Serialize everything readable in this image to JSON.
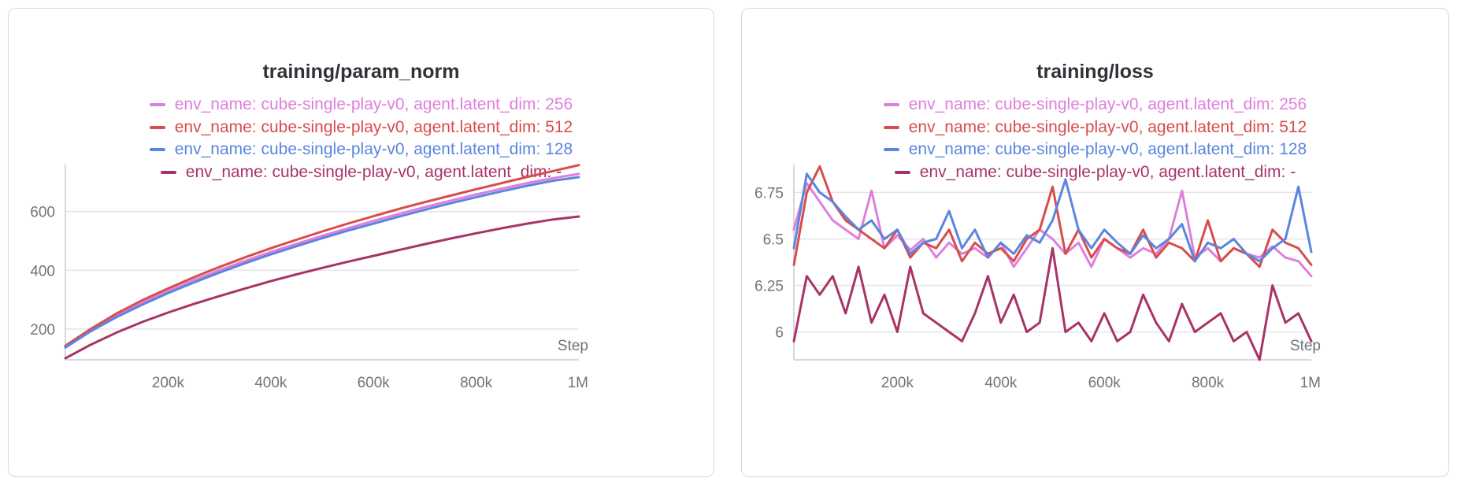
{
  "colors": {
    "axis": "#c9ccd1",
    "grid": "#e3e5e8",
    "tick_text": "#70747b",
    "title_text": "#2f3237"
  },
  "chart_data": [
    {
      "type": "line",
      "title": "training/param_norm",
      "xlabel": "Step",
      "ylabel": "",
      "xlim": [
        0,
        1000000
      ],
      "ylim": [
        95,
        760
      ],
      "x_ticks": [
        200000,
        400000,
        600000,
        800000,
        1000000
      ],
      "x_tick_labels": [
        "200k",
        "400k",
        "600k",
        "800k",
        "1M"
      ],
      "y_ticks": [
        200,
        400,
        600
      ],
      "y_tick_labels": [
        "200",
        "400",
        "600"
      ],
      "grid": "horizontal",
      "legend_position": "top-center",
      "x": [
        0,
        50000,
        100000,
        150000,
        200000,
        250000,
        300000,
        350000,
        400000,
        450000,
        500000,
        550000,
        600000,
        650000,
        700000,
        750000,
        800000,
        850000,
        900000,
        950000,
        1000000
      ],
      "series": [
        {
          "name": "env_name: cube-single-play-v0, agent.latent_dim: 256",
          "color": "#de7fdc",
          "values": [
            140,
            197,
            246,
            289,
            329,
            366,
            400,
            432,
            462,
            490,
            517,
            543,
            568,
            592,
            615,
            637,
            658,
            678,
            697,
            714,
            728
          ]
        },
        {
          "name": "env_name: cube-single-play-v0, agent.latent_dim: 512",
          "color": "#d94c4c",
          "values": [
            143,
            201,
            253,
            298,
            338,
            376,
            411,
            444,
            475,
            504,
            532,
            559,
            584,
            609,
            632,
            654,
            676,
            697,
            718,
            738,
            758
          ]
        },
        {
          "name": "env_name: cube-single-play-v0, agent.latent_dim: 128",
          "color": "#5b85de",
          "values": [
            137,
            193,
            241,
            283,
            322,
            358,
            392,
            424,
            454,
            482,
            509,
            535,
            559,
            583,
            606,
            628,
            649,
            669,
            688,
            705,
            717
          ]
        },
        {
          "name": "env_name: cube-single-play-v0, agent.latent_dim: -",
          "color": "#a83368",
          "values": [
            100,
            147,
            188,
            224,
            256,
            285,
            312,
            338,
            363,
            386,
            408,
            429,
            449,
            469,
            489,
            508,
            526,
            543,
            559,
            573,
            583
          ]
        }
      ]
    },
    {
      "type": "line",
      "title": "training/loss",
      "xlabel": "Step",
      "ylabel": "",
      "xlim": [
        0,
        1000000
      ],
      "ylim": [
        5.85,
        6.9
      ],
      "x_ticks": [
        200000,
        400000,
        600000,
        800000,
        1000000
      ],
      "x_tick_labels": [
        "200k",
        "400k",
        "600k",
        "800k",
        "1M"
      ],
      "y_ticks": [
        6,
        6.25,
        6.5,
        6.75
      ],
      "y_tick_labels": [
        "6",
        "6.25",
        "6.5",
        "6.75"
      ],
      "grid": "horizontal",
      "legend_position": "top-center",
      "x": [
        0,
        25000,
        50000,
        75000,
        100000,
        125000,
        150000,
        175000,
        200000,
        225000,
        250000,
        275000,
        300000,
        325000,
        350000,
        375000,
        400000,
        425000,
        450000,
        475000,
        500000,
        525000,
        550000,
        575000,
        600000,
        625000,
        650000,
        675000,
        700000,
        725000,
        750000,
        775000,
        800000,
        825000,
        850000,
        875000,
        900000,
        925000,
        950000,
        975000,
        1000000
      ],
      "series": [
        {
          "name": "env_name: cube-single-play-v0, agent.latent_dim: 256",
          "color": "#de7fdc",
          "values": [
            6.55,
            6.8,
            6.7,
            6.6,
            6.55,
            6.5,
            6.76,
            6.45,
            6.52,
            6.44,
            6.5,
            6.4,
            6.48,
            6.42,
            6.45,
            6.4,
            6.48,
            6.35,
            6.45,
            6.55,
            6.5,
            6.42,
            6.48,
            6.35,
            6.5,
            6.45,
            6.4,
            6.45,
            6.42,
            6.5,
            6.76,
            6.4,
            6.45,
            6.38,
            6.45,
            6.42,
            6.4,
            6.46,
            6.4,
            6.38,
            6.3
          ]
        },
        {
          "name": "env_name: cube-single-play-v0, agent.latent_dim: 512",
          "color": "#d94c4c",
          "values": [
            6.36,
            6.75,
            6.89,
            6.7,
            6.6,
            6.55,
            6.5,
            6.45,
            6.55,
            6.4,
            6.48,
            6.45,
            6.55,
            6.38,
            6.48,
            6.42,
            6.45,
            6.38,
            6.5,
            6.55,
            6.78,
            6.42,
            6.55,
            6.4,
            6.5,
            6.45,
            6.42,
            6.55,
            6.4,
            6.48,
            6.45,
            6.38,
            6.6,
            6.38,
            6.45,
            6.42,
            6.35,
            6.55,
            6.48,
            6.45,
            6.36
          ]
        },
        {
          "name": "env_name: cube-single-play-v0, agent.latent_dim: 128",
          "color": "#5b85de",
          "values": [
            6.45,
            6.85,
            6.75,
            6.7,
            6.62,
            6.55,
            6.6,
            6.5,
            6.55,
            6.42,
            6.48,
            6.5,
            6.65,
            6.45,
            6.55,
            6.4,
            6.48,
            6.42,
            6.52,
            6.48,
            6.6,
            6.82,
            6.55,
            6.45,
            6.55,
            6.48,
            6.42,
            6.52,
            6.45,
            6.5,
            6.58,
            6.38,
            6.48,
            6.45,
            6.5,
            6.42,
            6.38,
            6.45,
            6.5,
            6.78,
            6.43
          ]
        },
        {
          "name": "env_name: cube-single-play-v0, agent.latent_dim: -",
          "color": "#a83368",
          "values": [
            5.95,
            6.3,
            6.2,
            6.3,
            6.1,
            6.35,
            6.05,
            6.2,
            6.0,
            6.35,
            6.1,
            6.05,
            6.0,
            5.95,
            6.1,
            6.3,
            6.05,
            6.2,
            6.0,
            6.05,
            6.45,
            6.0,
            6.05,
            5.95,
            6.1,
            5.95,
            6.0,
            6.2,
            6.05,
            5.95,
            6.15,
            6.0,
            6.05,
            6.1,
            5.95,
            6.0,
            5.85,
            6.25,
            6.05,
            6.1,
            5.95
          ]
        }
      ]
    }
  ]
}
